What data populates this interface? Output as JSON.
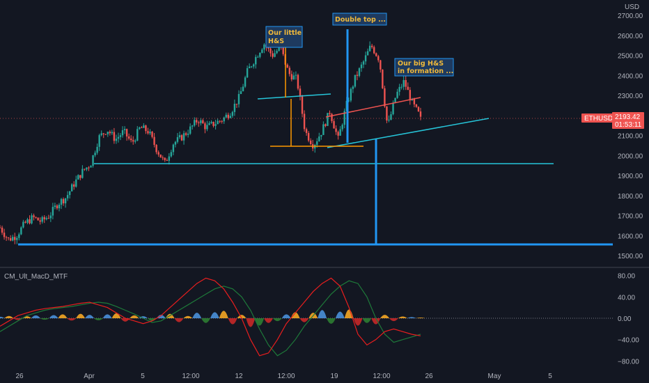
{
  "symbol": "ETHUSD",
  "currency": "USD",
  "last_price": "2193.42",
  "countdown": "01:53:11",
  "indicator_name": "CM_Ult_MacD_MTF",
  "colors": {
    "background": "#131722",
    "up": "#26a69a",
    "down": "#ef5350",
    "price_tag": "#ef5350",
    "blue_line": "#2196f3",
    "cyan_line": "#26c6da",
    "orange_line": "#ff9800",
    "red_line": "#ef5350",
    "macd_red": "#e91e1e",
    "macd_green": "#1e7a3a"
  },
  "annotations": [
    {
      "lines": [
        "Our little",
        "H&S"
      ]
    },
    {
      "lines": [
        "Double top ..."
      ]
    },
    {
      "lines": [
        "Our big H&S",
        "in formation ..."
      ]
    }
  ],
  "chart_data": [
    {
      "type": "candlestick",
      "title": "ETHUSD",
      "ylabel": "USD",
      "ylim": [
        1480,
        2750
      ],
      "y_ticks": [
        "2700.00",
        "2600.00",
        "2500.00",
        "2400.00",
        "2300.00",
        "2200.00",
        "2100.00",
        "2000.00",
        "1900.00",
        "1800.00",
        "1700.00",
        "1600.00",
        "1500.00"
      ],
      "x_ticks": [
        "26",
        "Apr",
        "5",
        "12:00",
        "12",
        "12:00",
        "19",
        "12:00",
        "26",
        "May",
        "5"
      ],
      "grid": false,
      "price_path": [
        1640,
        1580,
        1600,
        1660,
        1690,
        1670,
        1700,
        1760,
        1790,
        1860,
        1920,
        1960,
        2090,
        2130,
        2080,
        2120,
        2060,
        2140,
        2120,
        2030,
        1960,
        2060,
        2090,
        2130,
        2180,
        2140,
        2160,
        2180,
        2220,
        2290,
        2420,
        2490,
        2560,
        2500,
        2540,
        2410,
        2380,
        2120,
        2050,
        2120,
        2220,
        2080,
        2250,
        2380,
        2460,
        2550,
        2480,
        2140,
        2300,
        2370,
        2260,
        2190
      ],
      "price_path_range": [
        "26",
        "last candle"
      ],
      "last": 2193.42
    },
    {
      "type": "line",
      "title": "CM_Ult_MacD_MTF",
      "ylim": [
        -90,
        90
      ],
      "y_ticks": [
        "80.00",
        "40.00",
        "0.00",
        "−40.00",
        "−80.00"
      ],
      "series": [
        {
          "values": [
            -15,
            -5,
            5,
            10,
            15,
            18,
            20,
            22,
            25,
            28,
            30,
            25,
            20,
            10,
            0,
            -5,
            -10,
            -5,
            5,
            20,
            35,
            50,
            65,
            75,
            70,
            55,
            30,
            0,
            -40,
            -70,
            -65,
            -40,
            -10,
            10,
            30,
            50,
            65,
            75,
            60,
            20,
            -30,
            -50,
            -40,
            -25,
            -20,
            -25,
            -30,
            -33
          ]
        },
        {
          "values": [
            -25,
            -15,
            -5,
            5,
            10,
            15,
            18,
            20,
            22,
            25,
            28,
            30,
            28,
            22,
            15,
            8,
            0,
            -8,
            -5,
            5,
            15,
            25,
            35,
            45,
            55,
            60,
            55,
            40,
            15,
            -20,
            -50,
            -70,
            -60,
            -40,
            -15,
            5,
            25,
            45,
            60,
            70,
            65,
            40,
            0,
            -30,
            -45,
            -40,
            -35,
            -30
          ]
        },
        {
          "values": [
            3,
            6,
            -4,
            5,
            8,
            -3,
            9,
            12,
            -6,
            14,
            10,
            -5,
            12,
            16,
            -10,
            8,
            5,
            -8,
            10,
            14,
            -12,
            6,
            18,
            -15,
            20,
            25,
            -20,
            10,
            -30,
            -25,
            -15,
            -8,
            12,
            20,
            -12,
            18,
            28,
            -18,
            22,
            30,
            -25,
            -15,
            -20,
            10,
            -8,
            4,
            2,
            0
          ]
        }
      ]
    }
  ]
}
